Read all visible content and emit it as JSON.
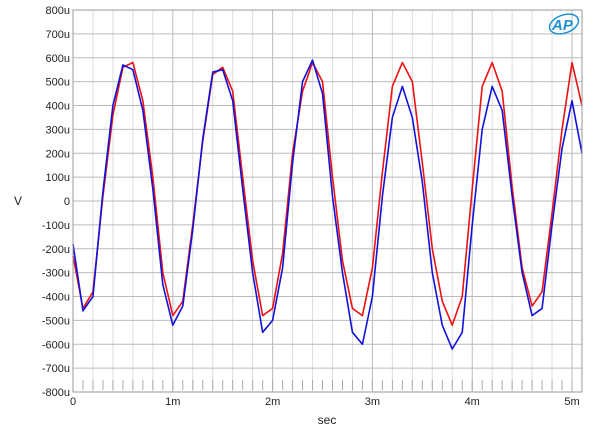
{
  "chart_data": {
    "type": "line",
    "title": "",
    "xlabel": "sec",
    "ylabel": "V",
    "xlim": [
      0,
      0.0051
    ],
    "ylim": [
      -0.0008,
      0.0008
    ],
    "x_tick_values": [
      0,
      0.001,
      0.002,
      0.003,
      0.004,
      0.005
    ],
    "x_tick_labels": [
      "0",
      "1m",
      "2m",
      "3m",
      "4m",
      "5m"
    ],
    "y_tick_values": [
      0.0008,
      0.0007,
      0.0006,
      0.0005,
      0.0004,
      0.0003,
      0.0002,
      0.0001,
      0,
      -0.0001,
      -0.0002,
      -0.0003,
      -0.0004,
      -0.0005,
      -0.0006,
      -0.0007,
      -0.0008
    ],
    "y_tick_labels": [
      "800u",
      "700u",
      "600u",
      "500u",
      "400u",
      "300u",
      "200u",
      "100u",
      "0",
      "-100u",
      "-200u",
      "-300u",
      "-400u",
      "-500u",
      "-600u",
      "-700u",
      "-800u"
    ],
    "grid": true,
    "logo_text": "AP",
    "colors": {
      "red": "#ee1111",
      "blue": "#1111dd",
      "grid": "#cccccc",
      "logo": "#1f8fd6"
    },
    "series": [
      {
        "color": "#ee1111",
        "x": [
          0,
          0.0001,
          0.0002,
          0.0003,
          0.0004,
          0.0005,
          0.0006,
          0.0007,
          0.0008,
          0.0009,
          0.001,
          0.0011,
          0.0012,
          0.0013,
          0.0014,
          0.0015,
          0.0016,
          0.0017,
          0.0018,
          0.0019,
          0.002,
          0.0021,
          0.0022,
          0.0023,
          0.0024,
          0.0025,
          0.0026,
          0.0027,
          0.0028,
          0.0029,
          0.003,
          0.0031,
          0.0032,
          0.0033,
          0.0034,
          0.0035,
          0.0036,
          0.0037,
          0.0038,
          0.0039,
          0.004,
          0.0041,
          0.0042,
          0.0043,
          0.0044,
          0.0045,
          0.0046,
          0.0047,
          0.0048,
          0.0049,
          0.005,
          0.0051
        ],
        "y": [
          -0.00023,
          -0.00045,
          -0.00038,
          2e-05,
          0.00036,
          0.00056,
          0.00058,
          0.00042,
          0.0001,
          -0.0003,
          -0.00048,
          -0.00042,
          -0.0001,
          0.00025,
          0.00053,
          0.00056,
          0.00046,
          0.0001,
          -0.00025,
          -0.00048,
          -0.00045,
          -0.00022,
          0.0002,
          0.00046,
          0.00058,
          0.0005,
          0.0001,
          -0.00025,
          -0.00045,
          -0.00048,
          -0.00028,
          0.00012,
          0.00048,
          0.00058,
          0.0005,
          0.00016,
          -0.0002,
          -0.00042,
          -0.00052,
          -0.0004,
          5e-05,
          0.00048,
          0.00058,
          0.00046,
          6e-05,
          -0.00028,
          -0.00044,
          -0.00038,
          -5e-05,
          0.0003,
          0.00058,
          0.0004
        ]
      },
      {
        "color": "#1111dd",
        "x": [
          0,
          0.0001,
          0.0002,
          0.0003,
          0.0004,
          0.0005,
          0.0006,
          0.0007,
          0.0008,
          0.0009,
          0.001,
          0.0011,
          0.0012,
          0.0013,
          0.0014,
          0.0015,
          0.0016,
          0.0017,
          0.0018,
          0.0019,
          0.002,
          0.0021,
          0.0022,
          0.0023,
          0.0024,
          0.0025,
          0.0026,
          0.0027,
          0.0028,
          0.0029,
          0.003,
          0.0031,
          0.0032,
          0.0033,
          0.0034,
          0.0035,
          0.0036,
          0.0037,
          0.0038,
          0.0039,
          0.004,
          0.0041,
          0.0042,
          0.0043,
          0.0044,
          0.0045,
          0.0046,
          0.0047,
          0.0048,
          0.0049,
          0.005,
          0.0051
        ],
        "y": [
          -0.00018,
          -0.00046,
          -0.0004,
          4e-05,
          0.0004,
          0.00057,
          0.00055,
          0.00038,
          5e-05,
          -0.00035,
          -0.00052,
          -0.00044,
          -0.00012,
          0.00026,
          0.00054,
          0.00055,
          0.00042,
          5e-05,
          -0.0003,
          -0.00055,
          -0.0005,
          -0.00028,
          0.00016,
          0.0005,
          0.00059,
          0.00045,
          2e-05,
          -0.0003,
          -0.00055,
          -0.0006,
          -0.0004,
          2e-05,
          0.00035,
          0.00048,
          0.00035,
          8e-05,
          -0.0003,
          -0.00052,
          -0.00062,
          -0.00055,
          -0.0001,
          0.0003,
          0.00048,
          0.00038,
          2e-05,
          -0.0003,
          -0.00048,
          -0.00045,
          -0.0001,
          0.00022,
          0.00042,
          0.0002
        ]
      }
    ]
  }
}
